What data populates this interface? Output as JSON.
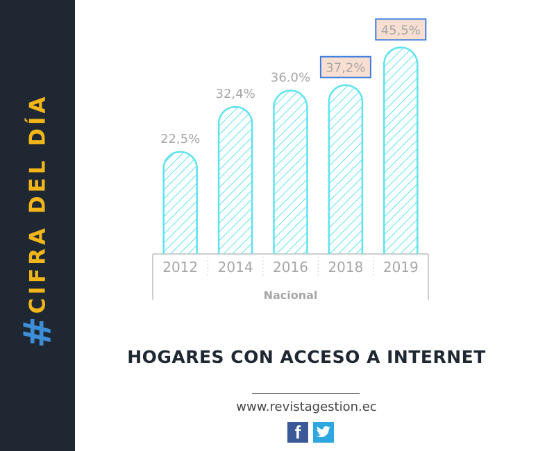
{
  "sidebar": {
    "hashtag": "#",
    "label": "CIFRA DEL DÍA"
  },
  "chart_data": {
    "type": "bar",
    "categories": [
      "2012",
      "2014",
      "2016",
      "2018",
      "2019"
    ],
    "values": [
      22.5,
      32.4,
      36.0,
      37.2,
      45.5
    ],
    "value_labels": [
      "22,5%",
      "32,4%",
      "36.0%",
      "37,2%",
      "45,5%"
    ],
    "highlighted": [
      "2018",
      "2019"
    ],
    "group_label": "Nacional",
    "ylim": [
      0,
      50
    ],
    "grid": false,
    "colors": {
      "bar": "#5ee3ee",
      "label": "#a6a6a6",
      "highlight_fill": "#f9dfd1",
      "highlight_border": "#3b7be0"
    }
  },
  "headline": "HOGARES CON ACCESO A INTERNET",
  "footer": {
    "website": "www.revistagestion.ec",
    "social": [
      "facebook-icon",
      "twitter-icon"
    ]
  }
}
